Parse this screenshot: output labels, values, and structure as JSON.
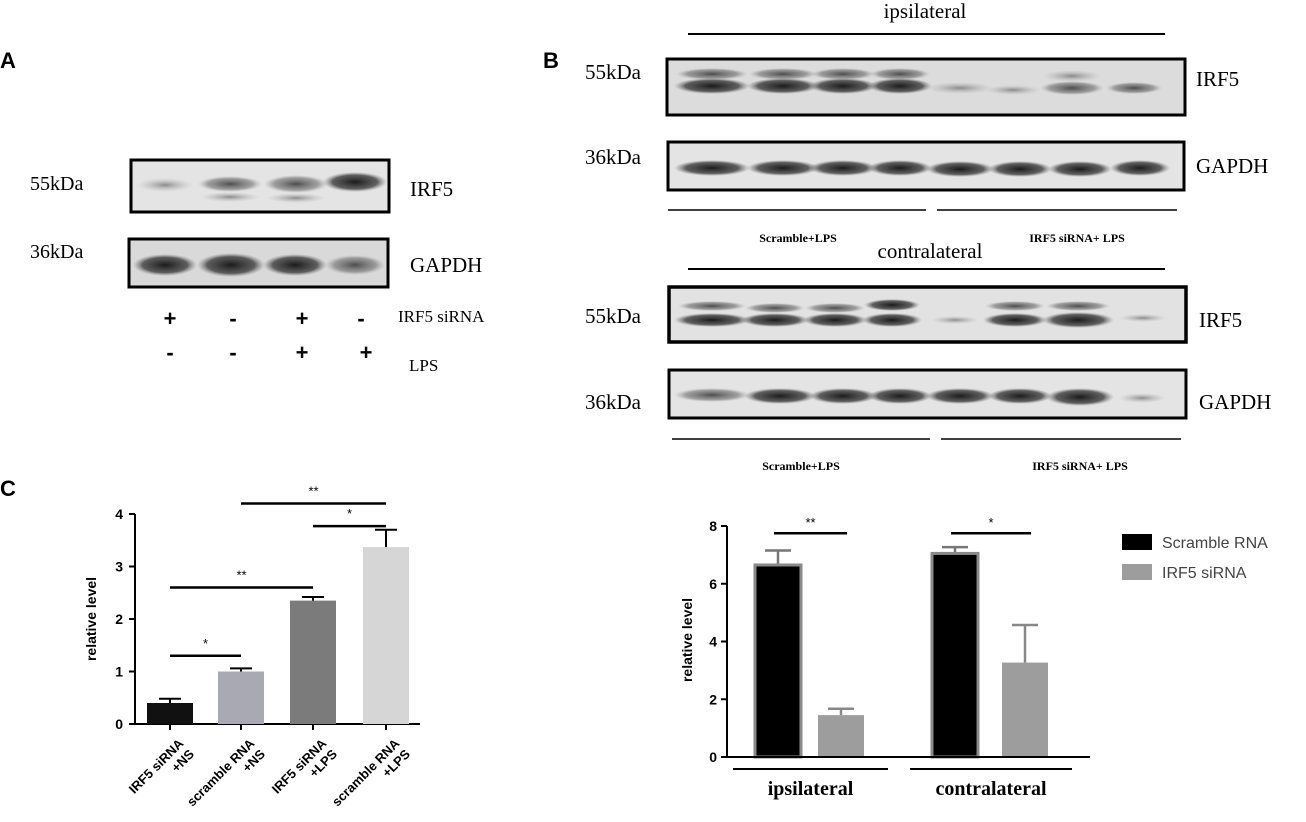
{
  "panel_a": {
    "label": "A",
    "blots": [
      {
        "kda": "55kDa",
        "protein": "IRF5"
      },
      {
        "kda": "36kDa",
        "protein": "GAPDH"
      }
    ],
    "rows": [
      {
        "marks": [
          "+",
          "-",
          "+",
          "-"
        ],
        "label": "IRF5 siRNA"
      },
      {
        "marks": [
          "-",
          "-",
          "+",
          "+"
        ],
        "label": "LPS"
      }
    ]
  },
  "panel_b": {
    "label": "B",
    "ipsi": {
      "title": "ipsilateral",
      "blots": [
        {
          "kda": "55kDa",
          "protein": "IRF5"
        },
        {
          "kda": "36kDa",
          "protein": "GAPDH"
        }
      ],
      "groups": [
        "Scramble+LPS",
        "IRF5 siRNA+ LPS"
      ]
    },
    "contra": {
      "title": "contralateral",
      "blots": [
        {
          "kda": "55kDa",
          "protein": "IRF5"
        },
        {
          "kda": "36kDa",
          "protein": "GAPDH"
        }
      ],
      "groups": [
        "Scramble+LPS",
        "IRF5 siRNA+ LPS"
      ]
    }
  },
  "panel_c": {
    "label": "C"
  },
  "chart_data": [
    {
      "type": "bar",
      "ylabel": "relative level",
      "ylim": [
        0,
        4
      ],
      "yticks": [
        "0",
        "1",
        "2",
        "3",
        "4"
      ],
      "categories": [
        [
          "IRF5 siRNA",
          "+NS"
        ],
        [
          "scramble RNA",
          "+NS"
        ],
        [
          "IRF5 siRNA",
          "+LPS"
        ],
        [
          "scramble RNA",
          "+LPS"
        ]
      ],
      "values": [
        0.4,
        1.0,
        2.35,
        3.37
      ],
      "errors": [
        0.08,
        0.06,
        0.07,
        0.33
      ],
      "colors": [
        "#111111",
        "#a9a9b4",
        "#7b7b7b",
        "#d6d6d6"
      ],
      "significance": [
        {
          "from": 0,
          "to": 1,
          "label": "*",
          "y": 1.3
        },
        {
          "from": 0,
          "to": 2,
          "label": "**",
          "y": 2.6
        },
        {
          "from": 2,
          "to": 3,
          "label": "*",
          "y": 3.77
        },
        {
          "from": 1,
          "to": 3,
          "label": "**",
          "y": 4.2
        }
      ],
      "grid": false
    },
    {
      "type": "bar",
      "ylabel": "relative level",
      "ylim": [
        0,
        8
      ],
      "yticks": [
        "0",
        "2",
        "4",
        "6",
        "8"
      ],
      "categories": [
        "ipsilateral",
        "contralateral"
      ],
      "series": [
        {
          "name": "Scramble RNA",
          "color": "#000000",
          "values": [
            6.65,
            7.05
          ],
          "errors": [
            0.5,
            0.22
          ]
        },
        {
          "name": "IRF5 siRNA",
          "color": "#9d9d9d",
          "values": [
            1.45,
            3.27
          ],
          "errors": [
            0.22,
            1.3
          ]
        }
      ],
      "significance": [
        {
          "group": 0,
          "label": "**",
          "y": 7.75
        },
        {
          "group": 1,
          "label": "*",
          "y": 7.75
        }
      ],
      "legend": "right",
      "grid": false
    }
  ]
}
